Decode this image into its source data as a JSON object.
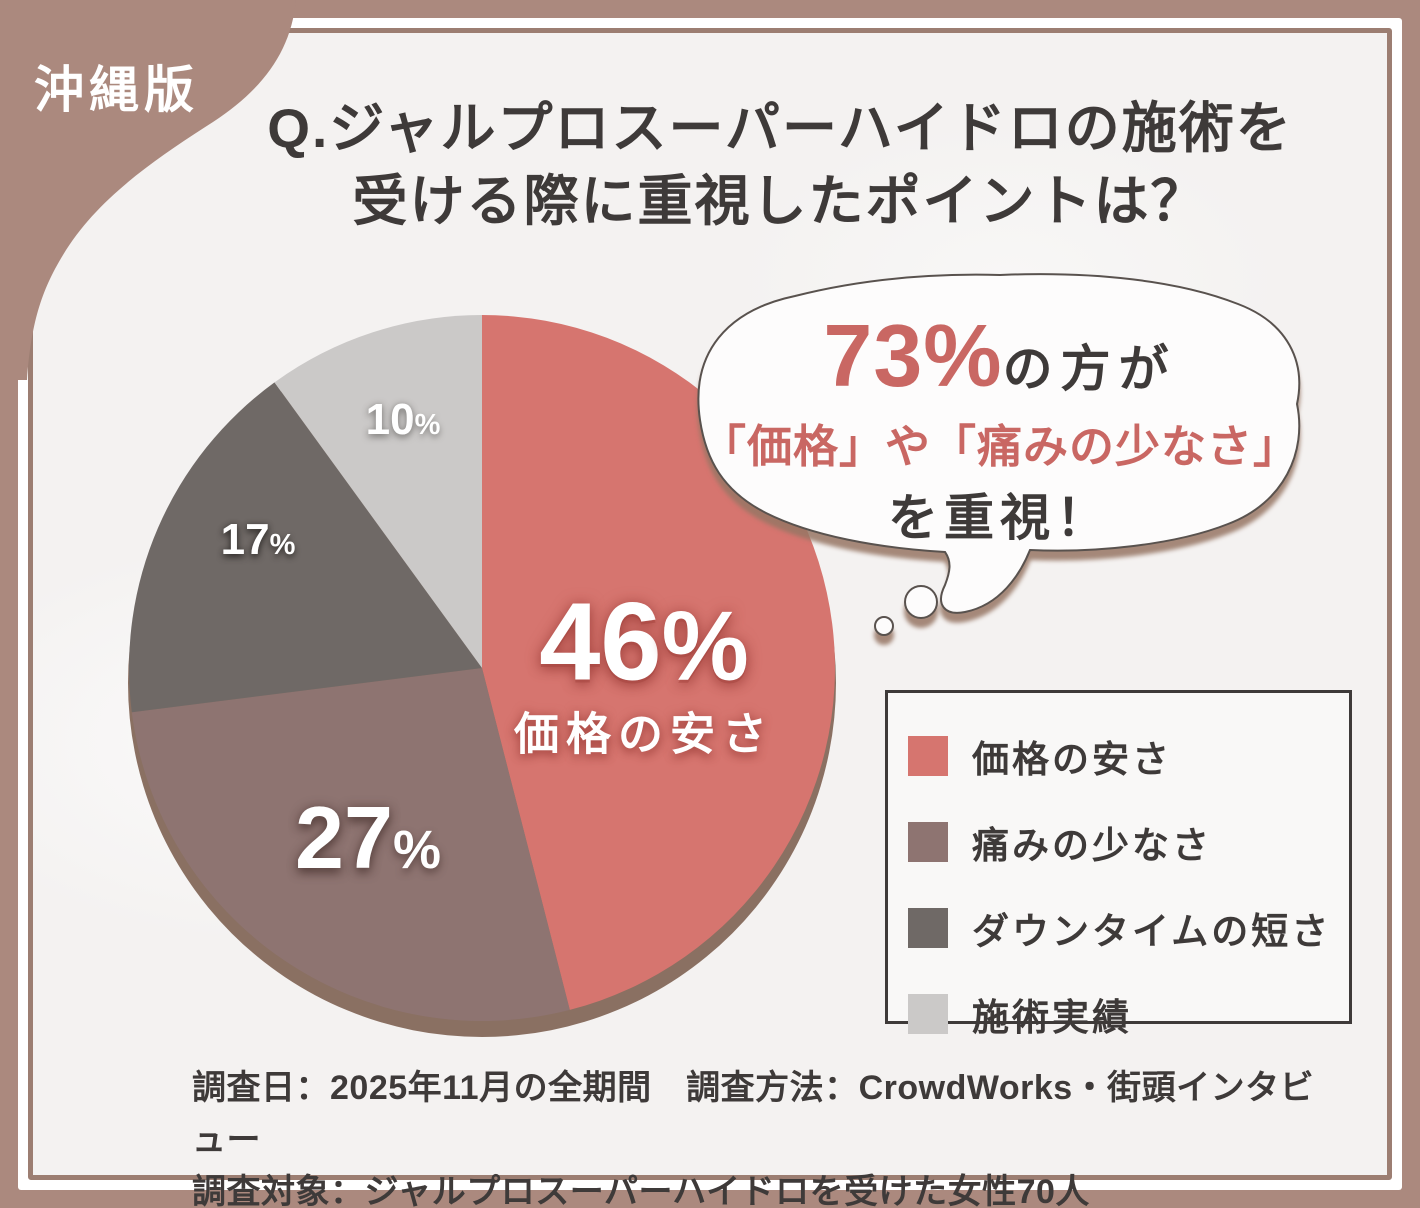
{
  "badge": {
    "label": "沖縄版"
  },
  "title": {
    "line1": "Q.ジャルプロスーパーハイドロの施術を",
    "line2": "受ける際に重視したポイントは？"
  },
  "bubble": {
    "stat": "73%",
    "after_stat": "の方が",
    "line2": "「価格」や「痛みの少なさ」",
    "line3": "を重視！"
  },
  "footer": {
    "line1": "調査日：2025年11月の全期間　調査方法：CrowdWorks・街頭インタビュー",
    "line2": "調査対象：ジャルプロスーパーハイドロを受けた女性70人"
  },
  "palette": {
    "frame": "#ab897e",
    "frame_line": "#9c7e72",
    "content_bg": "#f4f2f1",
    "text_dark": "#3e3a39",
    "accent_red": "#c96763",
    "pie_rim": "#8a7062",
    "legend_bg": "#f9f8f7"
  },
  "chart_data": {
    "type": "pie",
    "title": "Q.ジャルプロスーパーハイドロの施術を受ける際に重視したポイントは？",
    "labels": [
      "価格の安さ",
      "痛みの少なさ",
      "ダウンタイムの短さ",
      "施術実績"
    ],
    "values": [
      46,
      27,
      17,
      10
    ],
    "unit": "%",
    "colors": [
      "#d6756f",
      "#8e7471",
      "#6f6966",
      "#cbc9c8"
    ],
    "start_angle": "top",
    "direction": "clockwise",
    "legend_position": "right",
    "annotation": "73%の方が「価格」や「痛みの少なさ」を重視！"
  }
}
